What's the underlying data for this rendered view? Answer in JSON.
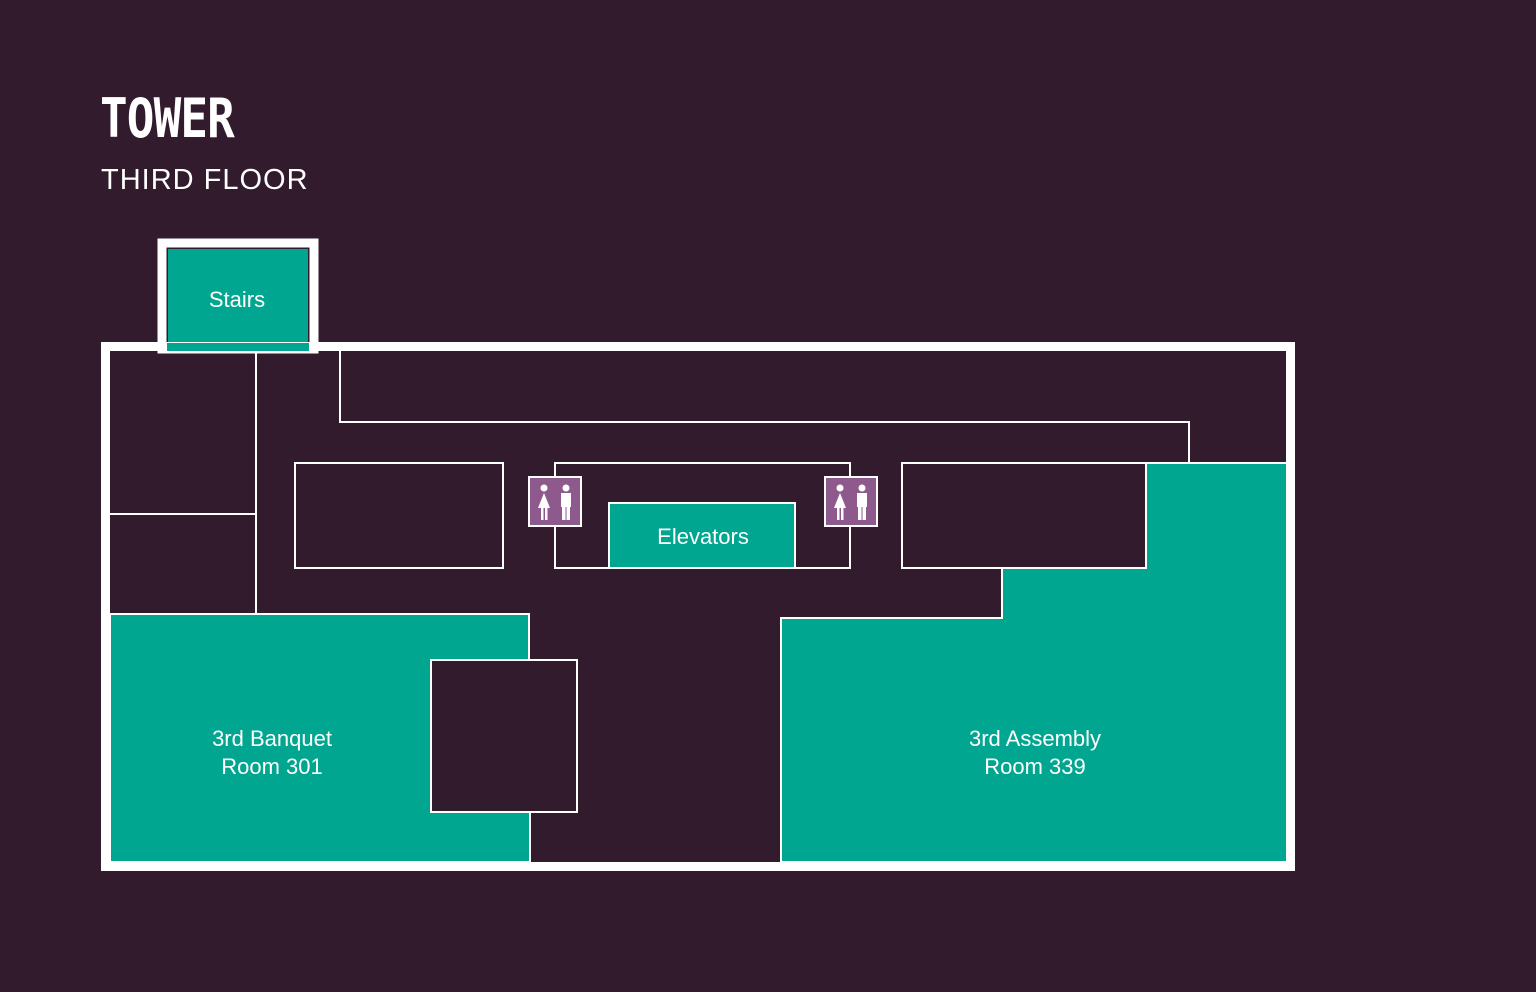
{
  "header": {
    "building": "TOWER",
    "floor": "THIRD FLOOR"
  },
  "colors": {
    "background": "#331b2e",
    "room_fill": "#00a690",
    "wall": "#ffffff",
    "restroom_fill": "#8e5a8e"
  },
  "rooms": {
    "stairs": "Stairs",
    "elevators": "Elevators",
    "banquet_line1": "3rd Banquet",
    "banquet_line2": "Room 301",
    "assembly_line1": "3rd Assembly",
    "assembly_line2": "Room 339"
  },
  "icons": {
    "restroom": "restroom-icon"
  }
}
